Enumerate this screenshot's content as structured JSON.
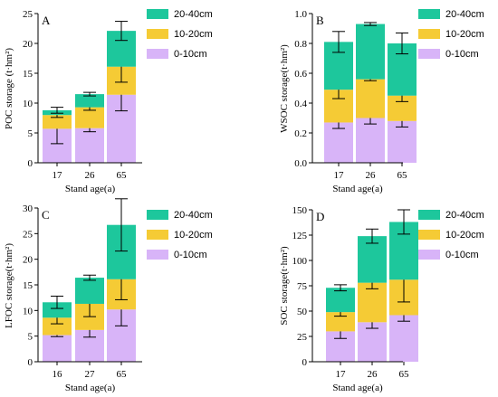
{
  "chart_data": [
    {
      "type": "bar",
      "stacked": true,
      "panel_label": "A",
      "xlabel": "Stand age(a)",
      "ylabel": "POC storage (t·hm²)",
      "categories": [
        "17",
        "26",
        "65"
      ],
      "ylim": [
        0,
        25
      ],
      "yticks": [
        "0",
        "5",
        "10",
        "15",
        "20",
        "25"
      ],
      "legend_position": "right",
      "series": [
        {
          "name": "0-10cm",
          "color": "#D8B4F8",
          "values": [
            5.7,
            5.8,
            11.4
          ],
          "error": [
            2.5,
            0.6,
            2.7
          ]
        },
        {
          "name": "10-20cm",
          "color": "#F5CB35",
          "values": [
            2.3,
            3.5,
            4.7
          ],
          "error": [
            0.4,
            0.5,
            2.6
          ]
        },
        {
          "name": "20-40cm",
          "color": "#1DC79C",
          "values": [
            0.8,
            2.2,
            6.0
          ],
          "error": [
            0.5,
            0.3,
            1.6
          ]
        }
      ]
    },
    {
      "type": "bar",
      "stacked": true,
      "panel_label": "B",
      "xlabel": "Stand age(a)",
      "ylabel": "WSOC storage(t·hm²)",
      "categories": [
        "17",
        "26",
        "65"
      ],
      "ylim": [
        0,
        1.0
      ],
      "yticks": [
        "0.0",
        "0.2",
        "0.4",
        "0.6",
        "0.8",
        "1.0"
      ],
      "legend_position": "right",
      "series": [
        {
          "name": "0-10cm",
          "color": "#D8B4F8",
          "values": [
            0.27,
            0.3,
            0.28
          ],
          "error": [
            0.04,
            0.04,
            0.04
          ]
        },
        {
          "name": "10-20cm",
          "color": "#F5CB35",
          "values": [
            0.22,
            0.26,
            0.17
          ],
          "error": [
            0.06,
            0.01,
            0.04
          ]
        },
        {
          "name": "20-40cm",
          "color": "#1DC79C",
          "values": [
            0.32,
            0.37,
            0.35
          ],
          "error": [
            0.07,
            0.01,
            0.07
          ]
        }
      ]
    },
    {
      "type": "bar",
      "stacked": true,
      "panel_label": "C",
      "xlabel": "Stand age(a)",
      "ylabel": "LFOC storage(t·hm²)",
      "categories": [
        "16",
        "27",
        "65"
      ],
      "ylim": [
        0,
        30
      ],
      "yticks": [
        "0",
        "5",
        "10",
        "15",
        "20",
        "25",
        "30"
      ],
      "legend_position": "right",
      "series": [
        {
          "name": "0-10cm",
          "color": "#D8B4F8",
          "values": [
            5.2,
            6.2,
            10.2
          ],
          "error": [
            0.3,
            1.4,
            3.2
          ]
        },
        {
          "name": "10-20cm",
          "color": "#F5CB35",
          "values": [
            3.4,
            5.1,
            5.9
          ],
          "error": [
            1.2,
            2.5,
            4.0
          ]
        },
        {
          "name": "20-40cm",
          "color": "#1DC79C",
          "values": [
            3.0,
            5.1,
            10.6
          ],
          "error": [
            1.2,
            0.5,
            5.1
          ]
        }
      ]
    },
    {
      "type": "bar",
      "stacked": true,
      "panel_label": "D",
      "xlabel": "Stand age(a)",
      "ylabel": "SOC storage(t·hm²)",
      "categories": [
        "17",
        "26",
        "65"
      ],
      "ylim": [
        0,
        150
      ],
      "yticks": [
        "0",
        "25",
        "50",
        "75",
        "100",
        "125",
        "150"
      ],
      "legend_position": "right",
      "series": [
        {
          "name": "0-10cm",
          "color": "#D8B4F8",
          "values": [
            30,
            39,
            46
          ],
          "error": [
            7,
            6,
            6
          ]
        },
        {
          "name": "10-20cm",
          "color": "#F5CB35",
          "values": [
            19,
            39,
            35
          ],
          "error": [
            4,
            6,
            22
          ]
        },
        {
          "name": "20-40cm",
          "color": "#1DC79C",
          "values": [
            24,
            46,
            57
          ],
          "error": [
            3,
            7,
            12
          ]
        }
      ]
    }
  ]
}
